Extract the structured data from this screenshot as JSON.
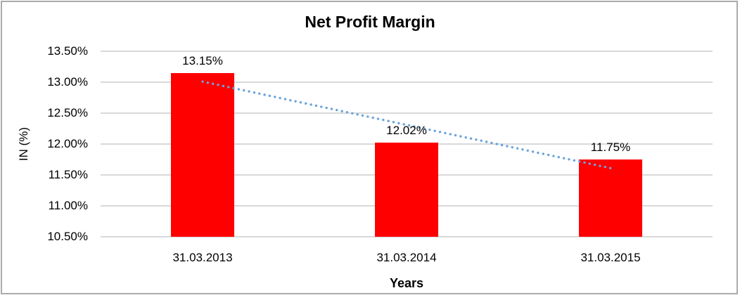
{
  "frame": {
    "border_color": "#aaaaaa",
    "background": "#ffffff"
  },
  "chart_data": {
    "type": "bar",
    "title": "Net Profit Margin",
    "xlabel": "Years",
    "ylabel": "IN (%)",
    "categories": [
      "31.03.2013",
      "31.03.2014",
      "31.03.2015"
    ],
    "values": [
      13.15,
      12.02,
      11.75
    ],
    "data_labels": [
      "13.15%",
      "12.02%",
      "11.75%"
    ],
    "ylim": [
      10.5,
      13.5
    ],
    "ytick_step": 0.5,
    "ytick_labels": [
      "13.50%",
      "13.00%",
      "12.50%",
      "12.00%",
      "11.50%",
      "11.00%",
      "10.50%"
    ],
    "grid": "horizontal",
    "legend": "none",
    "bar_color": "#ff0000",
    "gridline_color": "#d9d9d9",
    "text_color": "#000000",
    "trendline": {
      "type": "linear",
      "style": "dotted",
      "color": "#6ba3dc",
      "start_value": 13.01,
      "end_value": 11.61
    }
  }
}
